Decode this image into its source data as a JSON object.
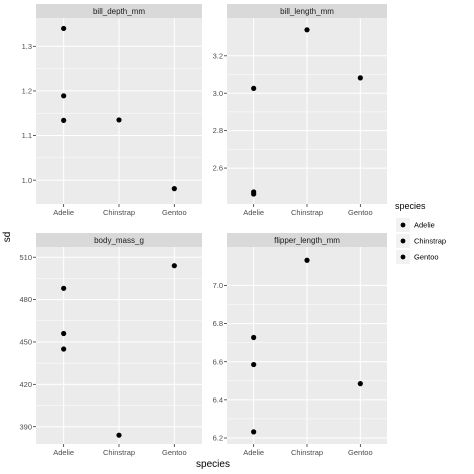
{
  "chart_data": {
    "type": "scatter",
    "xlabel": "species",
    "ylabel": "sd",
    "categories": [
      "Adelie",
      "Chinstrap",
      "Gentoo"
    ],
    "legend": {
      "title": "species",
      "entries": [
        "Adelie",
        "Chinstrap",
        "Gentoo"
      ],
      "placement": "right"
    },
    "colors": {
      "panel_bg": "#ebebeb",
      "strip_bg": "#d9d9d9",
      "grid": "#ffffff",
      "point": "#000000",
      "tick": "#4d4d4d"
    },
    "grid": true,
    "facets": [
      {
        "label": "bill_depth_mm",
        "ylim": [
          0.96,
          1.35
        ],
        "yticks": [
          1.0,
          1.1,
          1.2,
          1.3
        ],
        "ytick_labels": [
          "1.0",
          "1.1",
          "1.2",
          "1.3"
        ],
        "points": [
          {
            "x": "Adelie",
            "y": 1.34
          },
          {
            "x": "Adelie",
            "y": 1.189
          },
          {
            "x": "Adelie",
            "y": 1.134
          },
          {
            "x": "Chinstrap",
            "y": 1.135
          },
          {
            "x": "Gentoo",
            "y": 0.981
          }
        ]
      },
      {
        "label": "bill_length_mm",
        "ylim": [
          2.44,
          3.37
        ],
        "yticks": [
          2.6,
          2.8,
          3.0,
          3.2
        ],
        "ytick_labels": [
          "2.6",
          "2.8",
          "3.0",
          "3.2"
        ],
        "points": [
          {
            "x": "Adelie",
            "y": 3.026
          },
          {
            "x": "Adelie",
            "y": 2.472
          },
          {
            "x": "Adelie",
            "y": 2.461
          },
          {
            "x": "Chinstrap",
            "y": 3.339
          },
          {
            "x": "Gentoo",
            "y": 3.082
          }
        ]
      },
      {
        "label": "body_mass_g",
        "ylim": [
          382,
          513
        ],
        "yticks": [
          390,
          420,
          450,
          480,
          510
        ],
        "ytick_labels": [
          "390",
          "420",
          "450",
          "480",
          "510"
        ],
        "points": [
          {
            "x": "Adelie",
            "y": 488
          },
          {
            "x": "Adelie",
            "y": 456
          },
          {
            "x": "Adelie",
            "y": 445
          },
          {
            "x": "Chinstrap",
            "y": 384
          },
          {
            "x": "Gentoo",
            "y": 504
          }
        ]
      },
      {
        "label": "flipper_length_mm",
        "ylim": [
          6.2,
          7.17
        ],
        "yticks": [
          6.2,
          6.4,
          6.6,
          6.8,
          7.0
        ],
        "ytick_labels": [
          "6.2",
          "6.4",
          "6.6",
          "6.8",
          "7.0"
        ],
        "points": [
          {
            "x": "Adelie",
            "y": 6.727
          },
          {
            "x": "Adelie",
            "y": 6.585
          },
          {
            "x": "Adelie",
            "y": 6.232
          },
          {
            "x": "Chinstrap",
            "y": 7.132
          },
          {
            "x": "Gentoo",
            "y": 6.485
          }
        ]
      }
    ]
  }
}
